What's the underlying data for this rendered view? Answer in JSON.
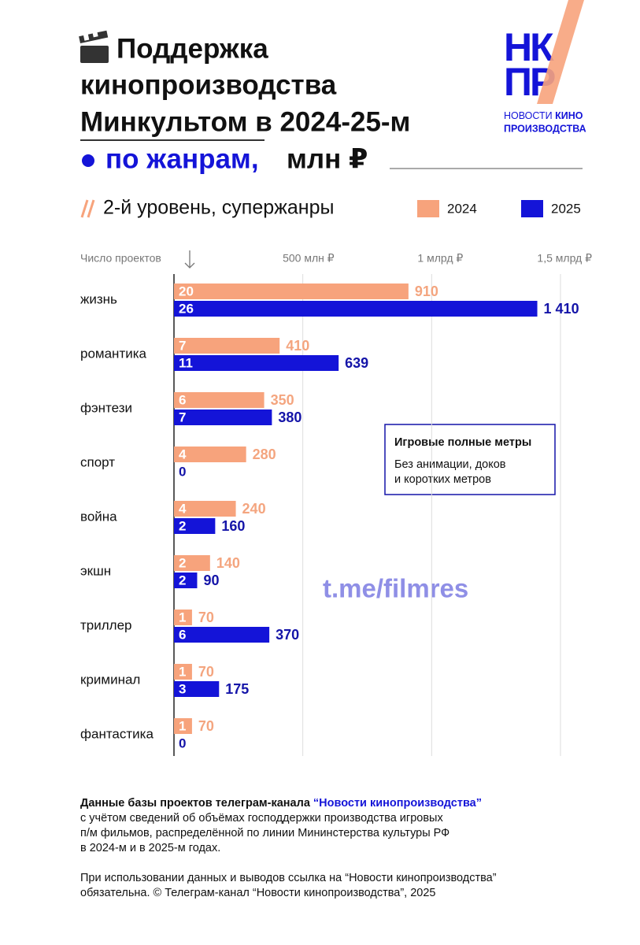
{
  "chart_data": {
    "type": "bar",
    "orientation": "horizontal",
    "title": [
      "Поддержка",
      "кинопроизводства",
      "Минкультом в 2024-25-м"
    ],
    "subtitle": "по жанрам,",
    "unit": "млн ₽",
    "level": "2-й уровень, супержанры",
    "count_label": "Число проектов",
    "categories": [
      "жизнь",
      "романтика",
      "фэнтези",
      "спорт",
      "война",
      "экшн",
      "триллер",
      "криминал",
      "фантастика"
    ],
    "series": [
      {
        "name": "2024",
        "color": "#f7a37c",
        "label_color": "#f4a57f",
        "values": [
          910,
          410,
          350,
          280,
          240,
          140,
          70,
          70,
          70
        ],
        "counts": [
          20,
          7,
          6,
          4,
          4,
          2,
          1,
          1,
          1
        ]
      },
      {
        "name": "2025",
        "color": "#1414d8",
        "label_color": "#1414a8",
        "values": [
          1410,
          639,
          380,
          0,
          160,
          90,
          370,
          175,
          0
        ],
        "value_labels": [
          "1 410",
          "639",
          "380",
          null,
          "160",
          "90",
          "370",
          "175",
          null
        ],
        "counts": [
          26,
          11,
          7,
          0,
          2,
          2,
          6,
          3,
          0
        ]
      }
    ],
    "xlim": [
      0,
      1500
    ],
    "xticks": [
      {
        "value": 500,
        "label": "500 млн ₽"
      },
      {
        "value": 1000,
        "label": "1 млрд ₽"
      },
      {
        "value": 1500,
        "label": "1,5 млрд ₽"
      }
    ],
    "grid": true,
    "note": {
      "title": "Игровые полные метры",
      "lines": [
        "Без анимации, доков",
        "и коротких метров"
      ]
    },
    "watermark": "t.me/filmres"
  },
  "logo": {
    "letters": [
      "НК",
      "ПР"
    ],
    "caption": [
      "НОВОСТИ",
      "КИНО",
      "ПРОИЗВОДСТВА"
    ]
  },
  "footer": {
    "source_lead": "Данные базы проектов телеграм-канала ",
    "source_name": "“Новости кинопроизводства”",
    "source_lines": [
      "с учётом сведений об объёмах господдержки производства игровых",
      "п/м фильмов, распределённой по линии Мининстерства культуры РФ",
      "в 2024-м и в 2025-м годах."
    ],
    "usage_lines": [
      "При использовании данных и выводов ссылка на “Новости кинопроизводства”",
      "обязательна. © Телеграм-канал “Новости кинопроизводства”, 2025"
    ]
  }
}
